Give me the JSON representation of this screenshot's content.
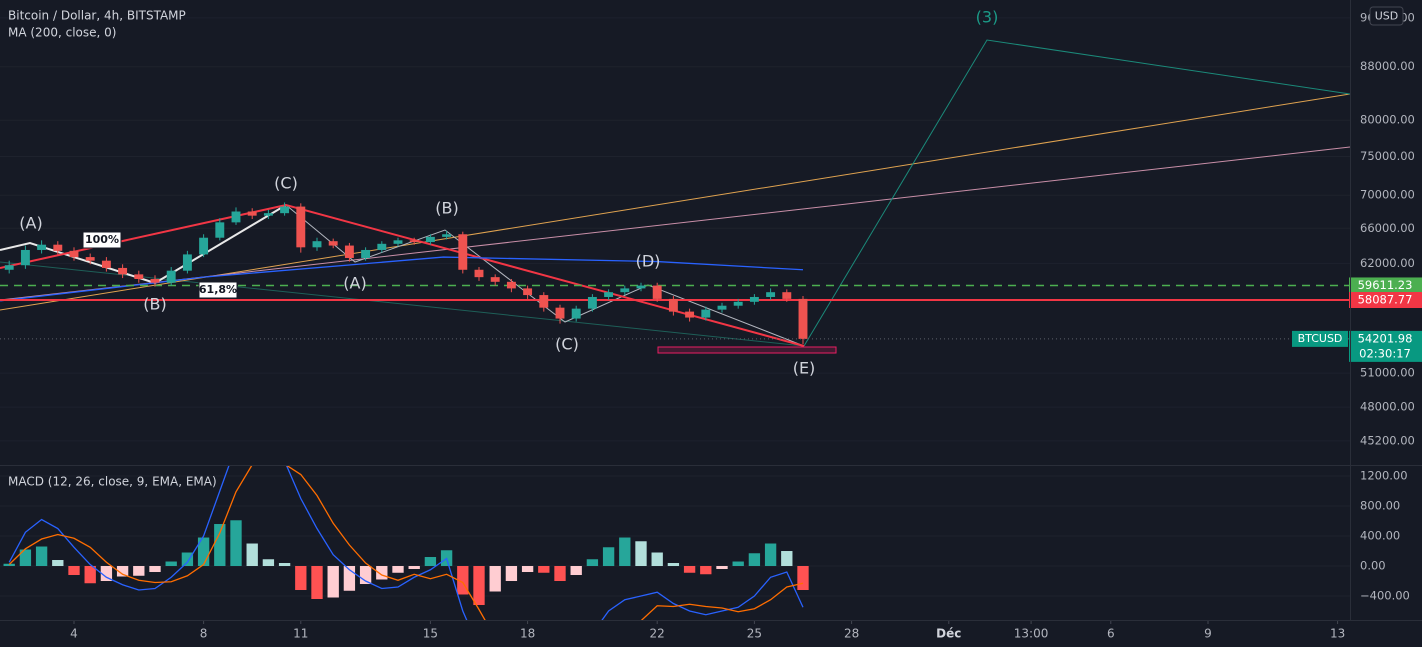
{
  "chart_data": [
    {
      "type": "candlestick",
      "title": "Bitcoin / Dollar, 4h, BITSTAMP",
      "currency": "USD",
      "symbol": "BTCUSD",
      "countdown": "02:30:17",
      "up_color": "#26a69a",
      "down_color": "#ef5350",
      "log_scale": true,
      "grid": true,
      "x": [
        2,
        2.5,
        3,
        3.5,
        4,
        4.5,
        5,
        5.5,
        6,
        6.5,
        7,
        7.5,
        8,
        8.5,
        9,
        9.5,
        10,
        10.5,
        11,
        11.5,
        12,
        12.5,
        13,
        13.5,
        14,
        14.5,
        15,
        15.5,
        16,
        16.5,
        17,
        17.5,
        18,
        18.5,
        19,
        19.5,
        20,
        20.5,
        21,
        21.5,
        22,
        22.5,
        23,
        23.5,
        24,
        24.5,
        25,
        25.5,
        26,
        26.5
      ],
      "open": [
        61300,
        61800,
        63500,
        64100,
        63400,
        62700,
        62300,
        61500,
        60800,
        60300,
        59900,
        61200,
        63000,
        64900,
        66700,
        68000,
        67500,
        67800,
        68600,
        63800,
        64500,
        64000,
        62600,
        63500,
        64200,
        64600,
        64400,
        65000,
        65300,
        61300,
        60500,
        60000,
        59300,
        58600,
        57300,
        56200,
        57200,
        58400,
        58900,
        59300,
        59600,
        58200,
        56900,
        56300,
        57100,
        57500,
        57900,
        58400,
        58900,
        58200
      ],
      "high": [
        62300,
        64000,
        64600,
        64500,
        63800,
        63100,
        62700,
        61900,
        61200,
        60700,
        61600,
        63400,
        65300,
        67200,
        68500,
        68400,
        68200,
        69100,
        69000,
        64900,
        64800,
        64300,
        63800,
        64500,
        64900,
        64900,
        65300,
        65700,
        65600,
        61600,
        60800,
        60300,
        59600,
        58900,
        57600,
        57500,
        58700,
        59200,
        59600,
        59900,
        59900,
        58500,
        57200,
        57400,
        57800,
        58200,
        58700,
        59300,
        59200,
        58500
      ],
      "low": [
        60900,
        61400,
        63100,
        63000,
        62300,
        61900,
        61100,
        60400,
        59900,
        59500,
        59600,
        60900,
        62700,
        64600,
        66400,
        67100,
        67100,
        67500,
        63200,
        63400,
        63700,
        62200,
        62300,
        63200,
        63900,
        64100,
        64100,
        64700,
        60900,
        60100,
        59600,
        58900,
        58200,
        56900,
        55700,
        55900,
        56900,
        58100,
        58600,
        59000,
        57900,
        56500,
        55900,
        56000,
        56800,
        57200,
        57600,
        58100,
        57900,
        53700
      ],
      "close": [
        61800,
        63500,
        64100,
        63400,
        62700,
        62300,
        61500,
        60800,
        60300,
        59900,
        61200,
        63000,
        64900,
        66700,
        68000,
        67500,
        67800,
        68600,
        63800,
        64500,
        64000,
        62600,
        63500,
        64200,
        64600,
        64400,
        65000,
        65300,
        61300,
        60500,
        60000,
        59300,
        58600,
        57300,
        56200,
        57200,
        58400,
        58900,
        59300,
        59600,
        58200,
        56900,
        56300,
        57100,
        57500,
        57900,
        58400,
        58900,
        58200,
        54201.98
      ],
      "ma": {
        "name": "MA (200, close, 0)",
        "color": "#2962ff",
        "x": [
          1.72,
          8,
          15.4,
          22,
          26.5
        ],
        "values": [
          58000,
          60500,
          62700,
          62200,
          61300
        ]
      },
      "levels": [
        {
          "value": 59611.23,
          "label": "59611.23",
          "color": "#4caf50",
          "dashed": true
        },
        {
          "value": 58087.77,
          "label": "58087.77",
          "color": "#f23645",
          "dashed": false
        }
      ],
      "annotations": [
        "(A)",
        "100%",
        "(B)",
        "61,8%",
        "(C)",
        "(A)",
        "(B)",
        "(C)",
        "(D)",
        "(E)",
        "(3)"
      ],
      "xlim": [
        1.716,
        43.383
      ],
      "ylim": [
        43300,
        99100
      ],
      "yticks": [
        {
          "value": 96000,
          "label": "96000.00"
        },
        {
          "value": 88000,
          "label": "88000.00"
        },
        {
          "value": 80000,
          "label": "80000.00"
        },
        {
          "value": 75000,
          "label": "75000.00"
        },
        {
          "value": 70000,
          "label": "70000.00"
        },
        {
          "value": 66000,
          "label": "66000.00"
        },
        {
          "value": 62000,
          "label": "62000.00"
        },
        {
          "value": 51000,
          "label": "51000.00"
        },
        {
          "value": 48000,
          "label": "48000.00"
        },
        {
          "value": 45200,
          "label": "45200.00"
        }
      ],
      "xticks": [
        4,
        8,
        11,
        15,
        18,
        22,
        25,
        28,
        {
          "value": 31,
          "label": "Déc"
        },
        {
          "value": 33.54,
          "label": "13:00"
        },
        {
          "value": 36,
          "label": "6"
        },
        {
          "value": 39,
          "label": "9"
        },
        {
          "value": 43,
          "label": "13"
        }
      ]
    },
    {
      "type": "macd",
      "title": "MACD (12, 26, close, 9, EMA, EMA)",
      "x": [
        2,
        2.5,
        3,
        3.5,
        4,
        4.5,
        5,
        5.5,
        6,
        6.5,
        7,
        7.5,
        8,
        8.5,
        9,
        9.5,
        10,
        10.5,
        11,
        11.5,
        12,
        12.5,
        13,
        13.5,
        14,
        14.5,
        15,
        15.5,
        16,
        16.5,
        17,
        17.5,
        18,
        18.5,
        19,
        19.5,
        20,
        20.5,
        21,
        21.5,
        22,
        22.5,
        23,
        23.5,
        24,
        24.5,
        25,
        25.5,
        26,
        26.5
      ],
      "histogram": [
        30,
        220,
        260,
        80,
        -120,
        -230,
        -200,
        -140,
        -130,
        -80,
        60,
        180,
        380,
        560,
        610,
        300,
        90,
        40,
        -320,
        -440,
        -420,
        -330,
        -240,
        -180,
        -90,
        -40,
        120,
        210,
        -380,
        -520,
        -340,
        -200,
        -80,
        -90,
        -200,
        -120,
        90,
        250,
        380,
        330,
        180,
        40,
        -90,
        -110,
        -40,
        60,
        170,
        300,
        200,
        -320
      ],
      "hist_colors": [
        "#26a69a",
        "#b2dfdb",
        "#ff5252",
        "#ffcdd2"
      ],
      "macd_line": {
        "color": "#2962ff",
        "values": [
          50,
          450,
          620,
          500,
          250,
          20,
          -150,
          -250,
          -320,
          -300,
          -150,
          50,
          400,
          1000,
          1600,
          1650,
          1500,
          1400,
          900,
          500,
          150,
          -50,
          -200,
          -300,
          -280,
          -150,
          -50,
          100,
          -600,
          -1100,
          -1300,
          -1350,
          -1400,
          -1400,
          -1300,
          -1200,
          -900,
          -600,
          -450,
          -400,
          -350,
          -500,
          -600,
          -650,
          -600,
          -550,
          -400,
          -150,
          -80,
          -550
        ]
      },
      "signal_line": {
        "color": "#ff6d00",
        "values": [
          20,
          230,
          360,
          420,
          370,
          250,
          50,
          -110,
          -190,
          -220,
          -210,
          -130,
          20,
          440,
          990,
          1350,
          1410,
          1360,
          1220,
          940,
          570,
          280,
          40,
          -120,
          -190,
          -110,
          -170,
          -110,
          -220,
          -580,
          -960,
          -1150,
          -1320,
          -1310,
          -1100,
          -1080,
          -990,
          -850,
          -830,
          -730,
          -530,
          -540,
          -510,
          -540,
          -560,
          -610,
          -570,
          -450,
          -280,
          -230
        ]
      },
      "ylim": [
        -720,
        1347
      ],
      "yticks": [
        {
          "value": 1200,
          "label": "1200.00"
        },
        {
          "value": 800,
          "label": "800.00"
        },
        {
          "value": 400,
          "label": "400.00"
        },
        {
          "value": 0,
          "label": "0.00"
        },
        {
          "value": -400,
          "label": "−400.00"
        }
      ]
    }
  ]
}
